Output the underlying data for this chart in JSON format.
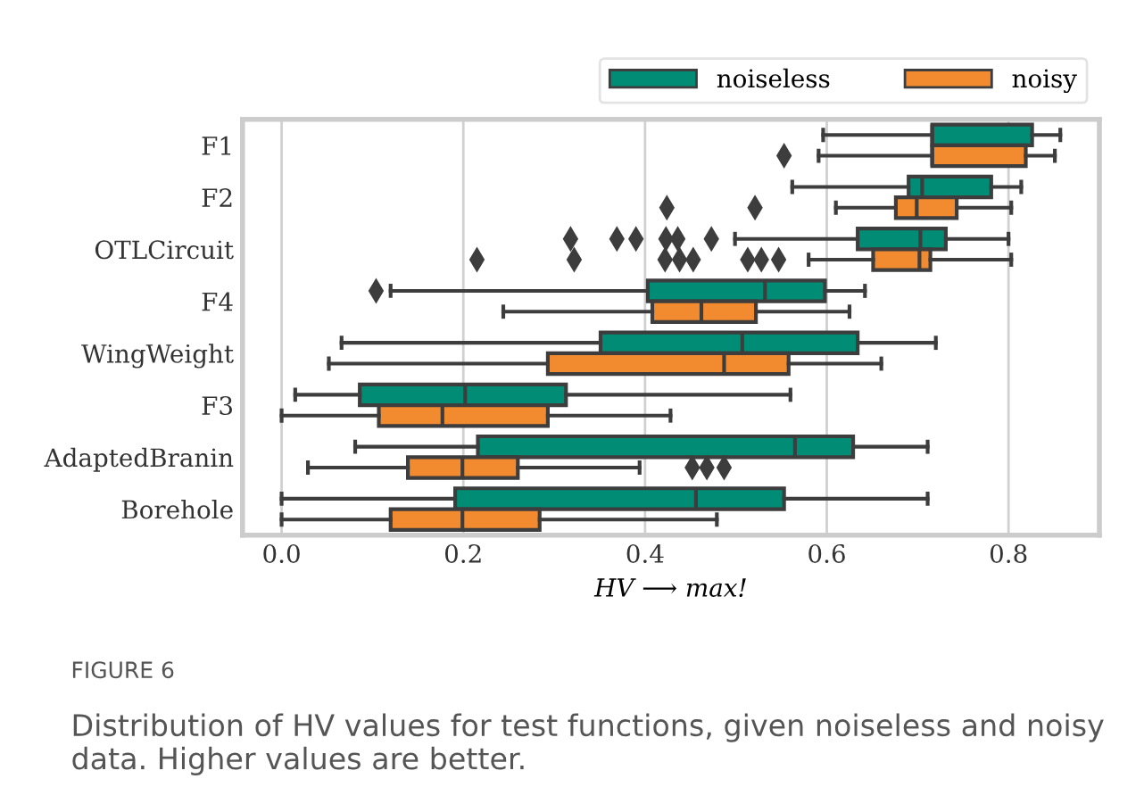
{
  "chart_data": {
    "type": "box",
    "orientation": "horizontal",
    "xlabel": "HV ⟶ max!",
    "categories": [
      "F1",
      "F2",
      "OTLCircuit",
      "F4",
      "WingWeight",
      "F3",
      "AdaptedBranin",
      "Borehole"
    ],
    "xlim": [
      -0.043,
      0.9
    ],
    "xticks": [
      {
        "value": 0.0,
        "label": "0.0"
      },
      0.2,
      0.4,
      0.6,
      0.8
    ],
    "grid": "x",
    "legend": "top right",
    "marker": "diamond",
    "series": [
      {
        "name": "noiseless",
        "color": "#018d75",
        "boxes": [
          {
            "low": 0.596,
            "q1": 0.716,
            "median": 0.716,
            "q3": 0.826,
            "high": 0.857
          },
          {
            "low": 0.562,
            "q1": 0.69,
            "median": 0.705,
            "q3": 0.781,
            "high": 0.814
          },
          {
            "low": 0.499,
            "q1": 0.634,
            "median": 0.703,
            "q3": 0.731,
            "high": 0.8,
            "outliers": [
              0.318,
              0.369,
              0.39,
              0.423,
              0.436,
              0.473
            ]
          },
          {
            "low": 0.12,
            "q1": 0.403,
            "median": 0.532,
            "q3": 0.598,
            "high": 0.642,
            "outliers": [
              0.104
            ]
          },
          {
            "low": 0.066,
            "q1": 0.351,
            "median": 0.507,
            "q3": 0.634,
            "high": 0.72
          },
          {
            "low": 0.015,
            "q1": 0.086,
            "median": 0.202,
            "q3": 0.313,
            "high": 0.56
          },
          {
            "low": 0.081,
            "q1": 0.216,
            "median": 0.565,
            "q3": 0.629,
            "high": 0.711
          },
          {
            "low": 0.0,
            "q1": 0.191,
            "median": 0.456,
            "q3": 0.553,
            "high": 0.711
          }
        ]
      },
      {
        "name": "noisy",
        "color": "#f28b30",
        "boxes": [
          {
            "low": 0.591,
            "q1": 0.716,
            "median": 0.716,
            "q3": 0.819,
            "high": 0.851,
            "outliers": [
              0.553
            ]
          },
          {
            "low": 0.61,
            "q1": 0.676,
            "median": 0.699,
            "q3": 0.743,
            "high": 0.803,
            "outliers": [
              0.424,
              0.521
            ]
          },
          {
            "low": 0.58,
            "q1": 0.651,
            "median": 0.702,
            "q3": 0.714,
            "high": 0.803,
            "outliers": [
              0.215,
              0.322,
              0.422,
              0.438,
              0.453,
              0.513,
              0.528,
              0.547
            ]
          },
          {
            "low": 0.244,
            "q1": 0.408,
            "median": 0.462,
            "q3": 0.522,
            "high": 0.625
          },
          {
            "low": 0.052,
            "q1": 0.293,
            "median": 0.487,
            "q3": 0.558,
            "high": 0.66
          },
          {
            "low": 0.0,
            "q1": 0.107,
            "median": 0.177,
            "q3": 0.293,
            "high": 0.428
          },
          {
            "low": 0.029,
            "q1": 0.139,
            "median": 0.199,
            "q3": 0.26,
            "high": 0.394,
            "outliers": [
              0.452,
              0.468,
              0.487
            ]
          },
          {
            "low": 0.0,
            "q1": 0.12,
            "median": 0.199,
            "q3": 0.284,
            "high": 0.479
          }
        ]
      }
    ],
    "annotations": [
      "FIGURE 6",
      "Distribution of HV values for test functions, given noiseless and noisy data. Higher values are better."
    ]
  }
}
